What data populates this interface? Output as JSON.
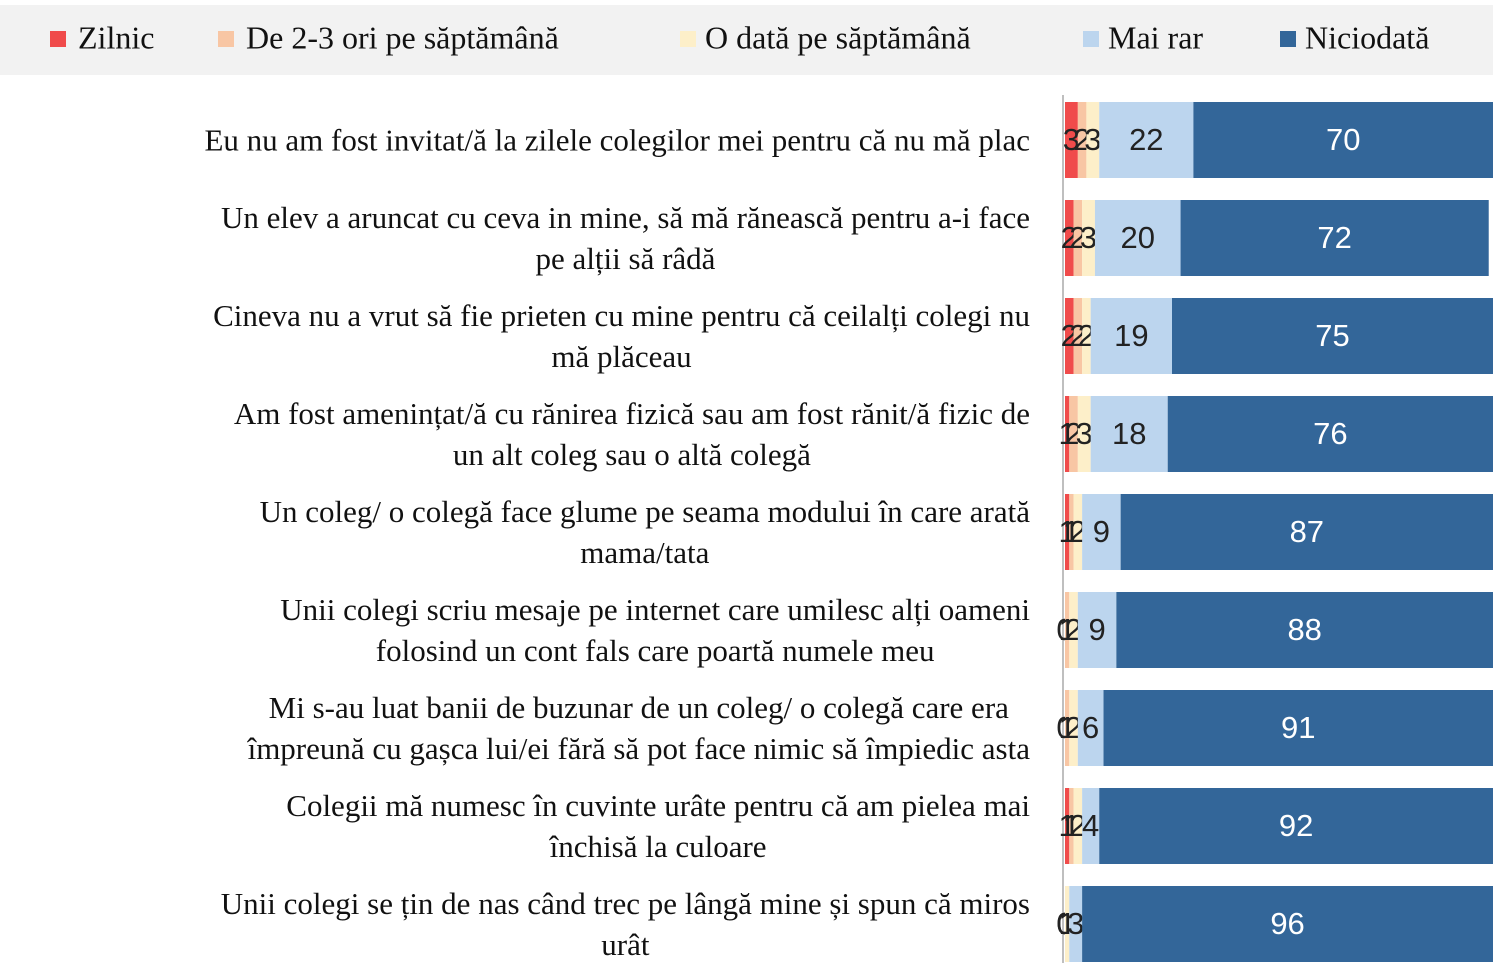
{
  "chart_data": {
    "type": "stacked-bar-horizontal",
    "categories": [
      "Eu nu am fost invitat/ă la zilele colegilor mei pentru că nu mă plac",
      "Un elev a aruncat cu ceva in mine, să mă rănească  pentru  a-i face\npe alții să râdă",
      "Cineva nu a vrut să fie prieten cu mine pentru că ceilalți colegi nu\nmă plăceau",
      "Am fost amenințat/ă cu rănirea fizică sau am fost rănit/ă fizic de\nun alt coleg sau o altă colegă",
      "Un coleg/ o colegă face glume pe seama modului în care arată\nmama/tata",
      "Unii colegi scriu mesaje pe internet care umilesc alți oameni\nfolosind un cont fals care poartă numele meu",
      "Mi s-au luat banii de buzunar de un coleg/ o colegă care era\nîmpreună cu gașca lui/ei  fără să pot face nimic să împiedic asta",
      "Colegii mă numesc în cuvinte urâte pentru că am pielea mai\nînchisă la culoare",
      "Unii colegi se țin de nas când trec pe lângă mine și spun că miros\nurât"
    ],
    "series": [
      {
        "name": "Zilnic",
        "color": "#f04b4b",
        "values": [
          3,
          2,
          2,
          1,
          1,
          0,
          0,
          1,
          0
        ]
      },
      {
        "name": "De 2-3 ori pe săptămână",
        "color": "#f8c6a4",
        "values": [
          2,
          2,
          2,
          2,
          1,
          1,
          1,
          1,
          0
        ]
      },
      {
        "name": "O dată pe săptămână",
        "color": "#fdefc9",
        "values": [
          3,
          3,
          2,
          3,
          2,
          2,
          2,
          2,
          1
        ]
      },
      {
        "name": "Mai rar",
        "color": "#bcd5ee",
        "values": [
          22,
          20,
          19,
          18,
          9,
          9,
          6,
          4,
          3
        ]
      },
      {
        "name": "Niciodată",
        "color": "#336699",
        "values": [
          70,
          72,
          75,
          76,
          87,
          88,
          91,
          92,
          96
        ]
      }
    ],
    "xlim": [
      0,
      100
    ]
  }
}
